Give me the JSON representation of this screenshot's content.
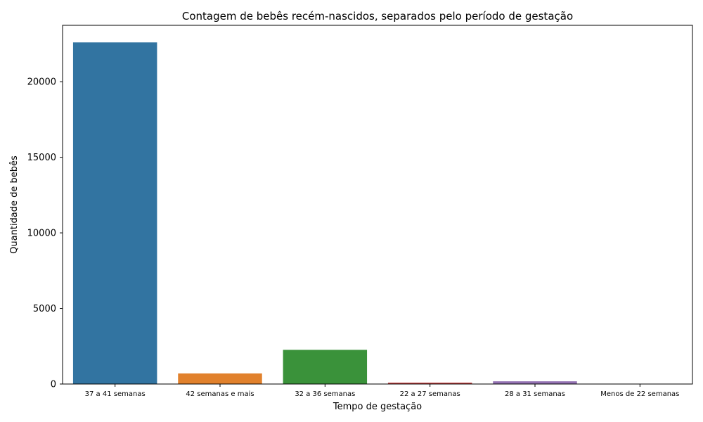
{
  "chart_data": {
    "type": "bar",
    "title": "Contagem de bebês recém-nascidos, separados pelo período de gestação",
    "xlabel": "Tempo de gestação",
    "ylabel": "Quantidade de bebês",
    "categories": [
      "37 a 41 semanas",
      "42 semanas e mais",
      "32 a 36 semanas",
      "22 a 27 semanas",
      "28 a 31 semanas",
      "Menos de 22 semanas"
    ],
    "values": [
      22600,
      700,
      2260,
      90,
      180,
      10
    ],
    "colors": [
      "#3274a1",
      "#e1812c",
      "#3a923a",
      "#c03d3e",
      "#9372b2",
      "#845b53"
    ],
    "yticks": [
      0,
      5000,
      10000,
      15000,
      20000
    ],
    "ylim": [
      0,
      23730
    ],
    "grid": false,
    "legend": "none"
  }
}
